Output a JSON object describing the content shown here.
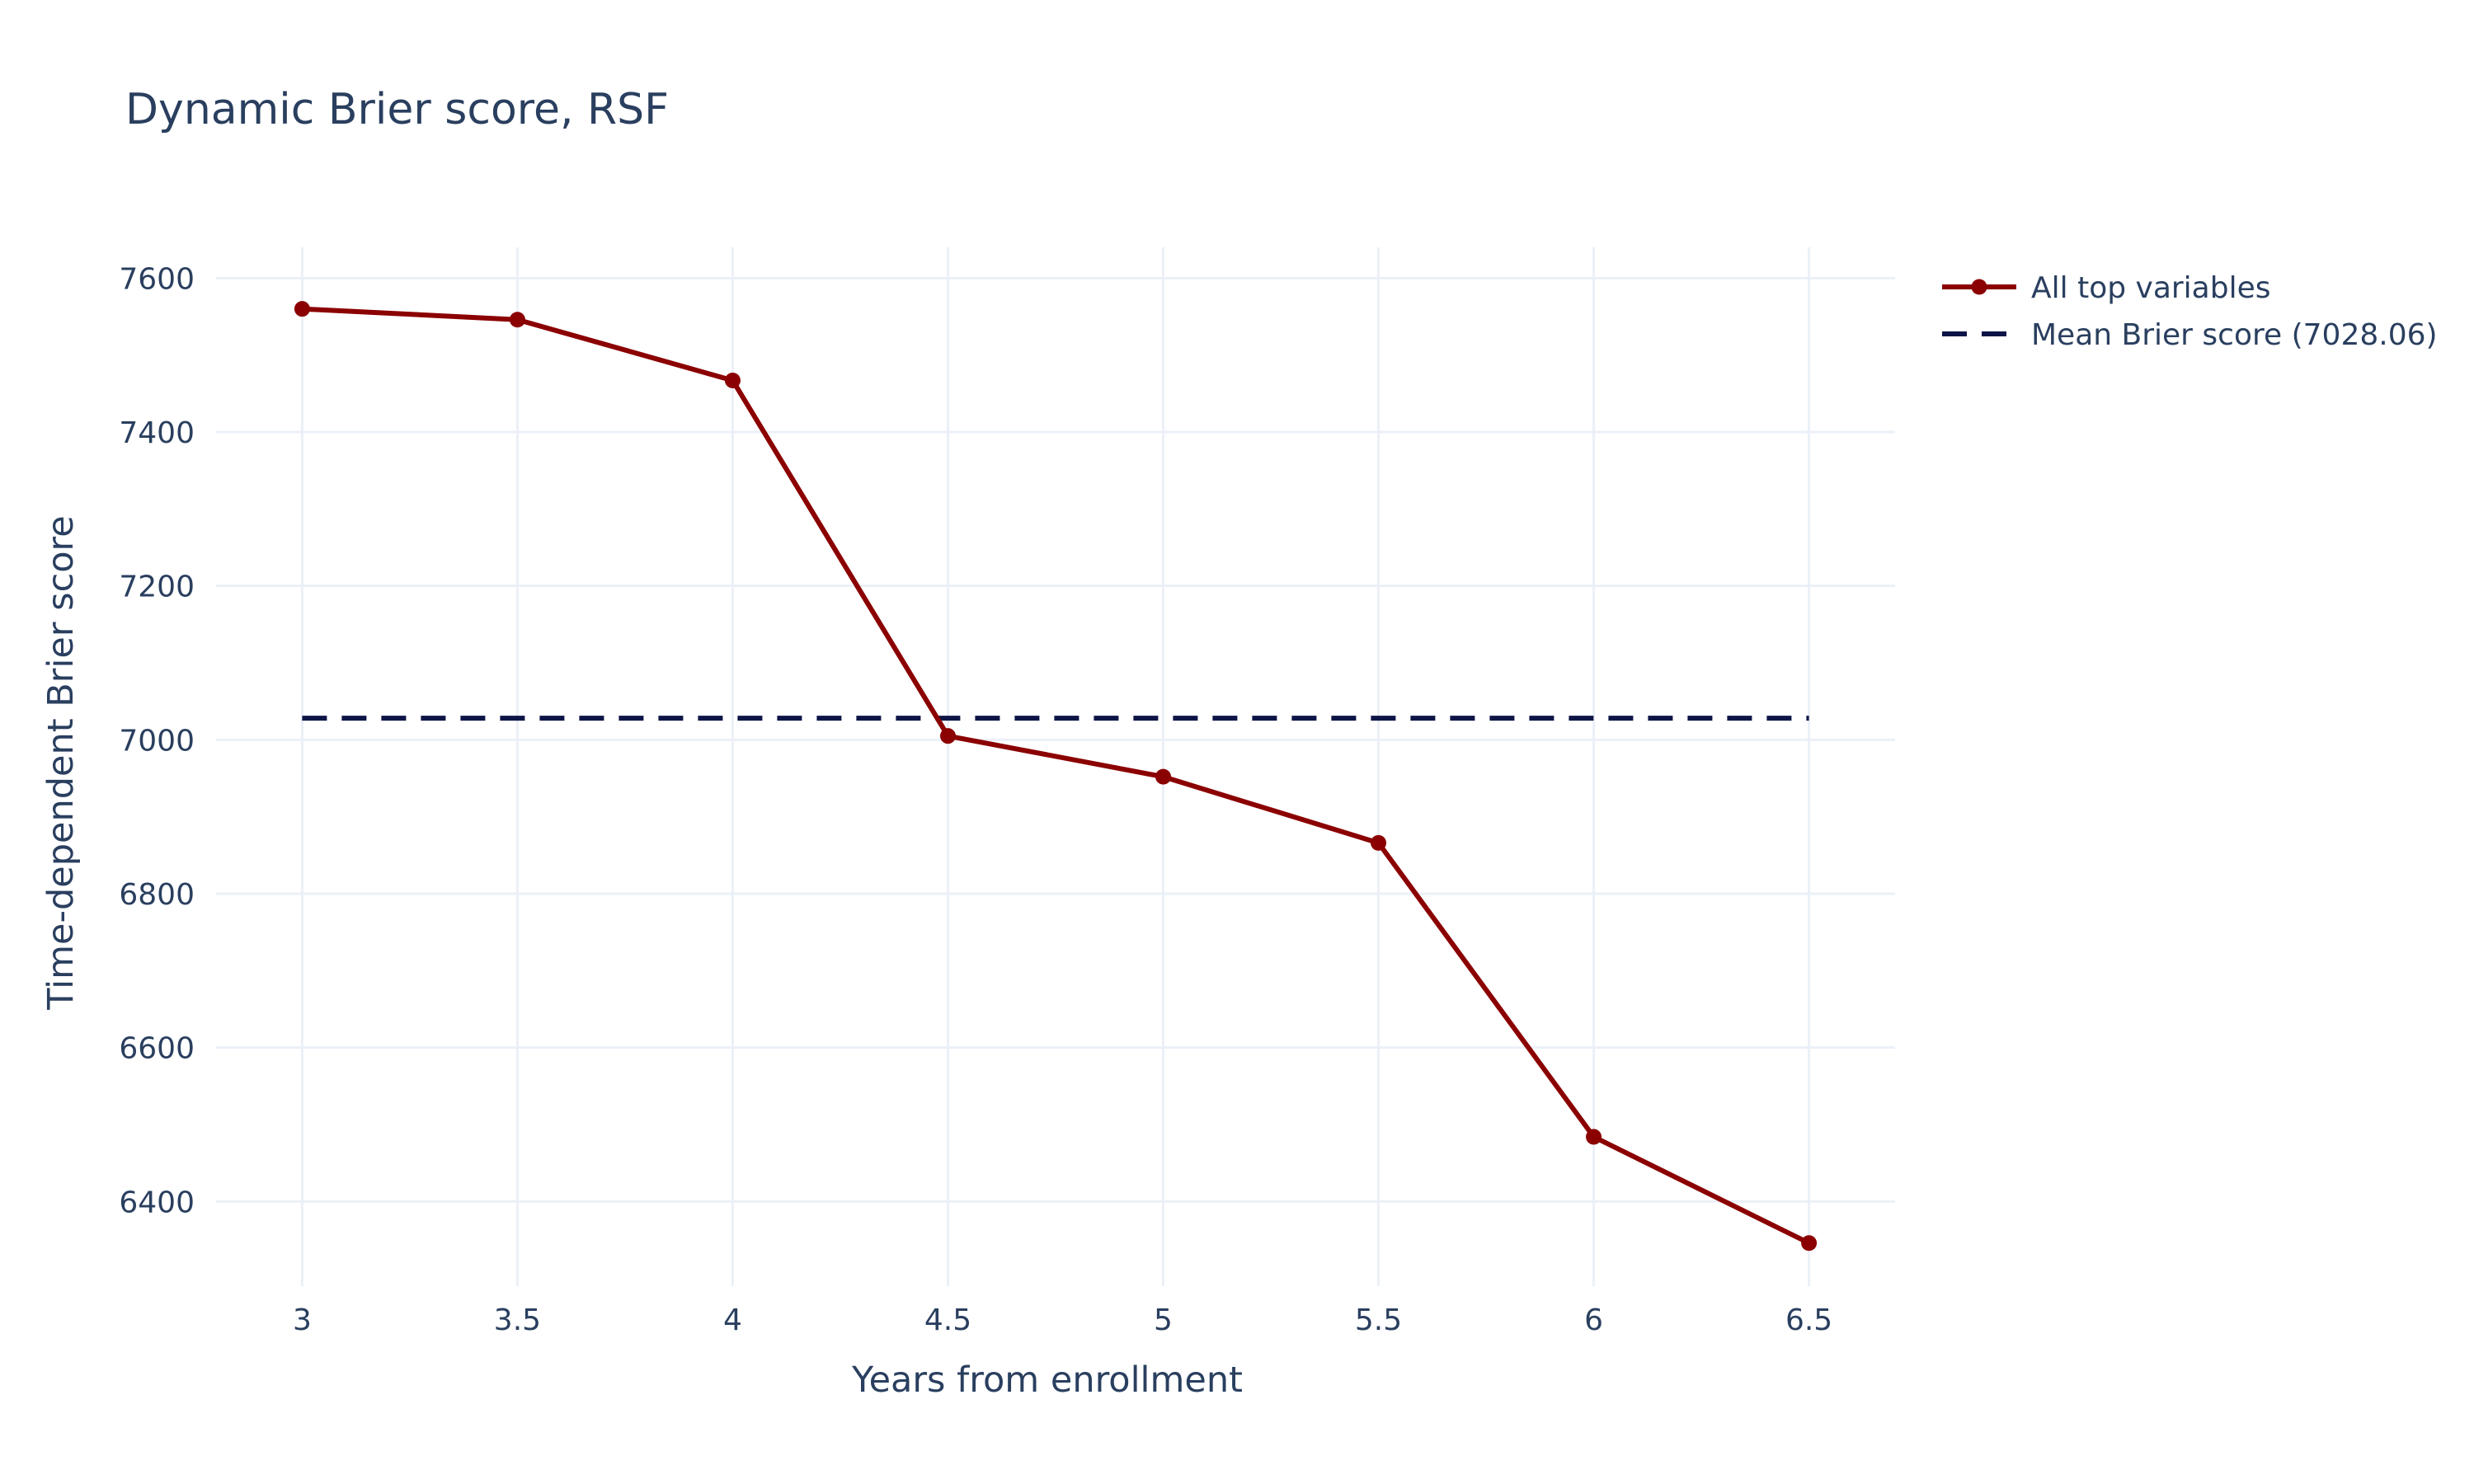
{
  "chart_data": {
    "type": "line",
    "title": "Dynamic Brier score, RSF",
    "xlabel": "Years from enrollment",
    "ylabel": "Time-dependent Brier score",
    "x": [
      3,
      3.5,
      4,
      4.5,
      5,
      5.5,
      6,
      6.5
    ],
    "xticks": [
      "3",
      "3.5",
      "4",
      "4.5",
      "5",
      "5.5",
      "6",
      "6.5"
    ],
    "yticks": [
      "6400",
      "6600",
      "6800",
      "7000",
      "7200",
      "7400",
      "7600"
    ],
    "xlim": [
      2.8,
      6.7
    ],
    "ylim": [
      6290,
      7640
    ],
    "grid": true,
    "legend_position": "top-right, outside plot",
    "series": [
      {
        "name": "All top variables",
        "mode": "lines+markers",
        "color": "#8b0000",
        "values": [
          7560,
          7546,
          7467,
          7005,
          6952,
          6866,
          6484,
          6346
        ]
      },
      {
        "name": "Mean Brier score (7028.06)",
        "mode": "dashed line",
        "color": "#0d1547",
        "values": [
          7028.06,
          7028.06,
          7028.06,
          7028.06,
          7028.06,
          7028.06,
          7028.06,
          7028.06
        ]
      }
    ]
  }
}
